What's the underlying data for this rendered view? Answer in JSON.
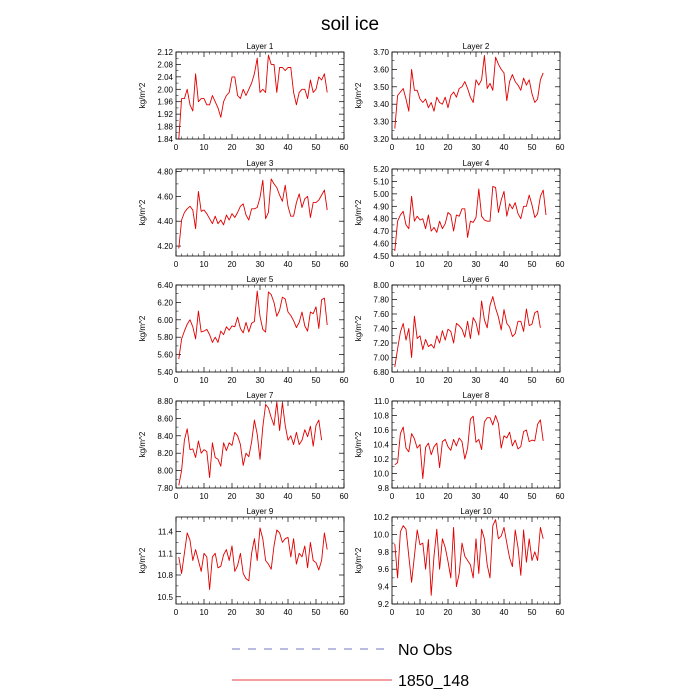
{
  "title": "soil ice",
  "legend": [
    {
      "label": "No Obs",
      "color": "#4b4bb0",
      "dash": "dashed"
    },
    {
      "label": "1850_148",
      "color": "#e00000",
      "dash": "solid"
    }
  ],
  "colors": {
    "series": "#e00000",
    "noobs": "#4b4bb0"
  },
  "chart_data": [
    {
      "type": "line",
      "title": "Layer 1",
      "ylabel": "kg/m^2",
      "xlim": [
        0,
        60
      ],
      "ylim": [
        1.84,
        2.12
      ],
      "xticks": [
        0,
        10,
        20,
        30,
        40,
        50,
        60
      ],
      "yticks": [
        1.84,
        1.88,
        1.92,
        1.96,
        2.0,
        2.04,
        2.08,
        2.12
      ],
      "ytick_labels": [
        "1.84",
        "1.88",
        "1.92",
        "1.96",
        "2.00",
        "2.04",
        "2.08",
        "2.12"
      ],
      "grid": false,
      "series": [
        {
          "name": "1850_148",
          "x_start": 1,
          "values": [
            1.84,
            1.97,
            1.97,
            2.0,
            1.95,
            1.93,
            2.05,
            1.96,
            1.97,
            1.97,
            1.95,
            1.95,
            1.98,
            1.96,
            1.94,
            1.91,
            1.96,
            1.98,
            1.99,
            2.04,
            2.04,
            1.98,
            1.97,
            2.0,
            1.98,
            2.0,
            2.02,
            2.05,
            2.1,
            1.99,
            2.0,
            1.99,
            2.11,
            2.08,
            2.08,
            1.99,
            2.07,
            2.07,
            2.06,
            2.07,
            2.07,
            1.99,
            1.95,
            1.99,
            2.0,
            2.0,
            1.97,
            2.03,
            1.99,
            2.0,
            2.04,
            2.03,
            2.05,
            1.99
          ]
        }
      ]
    },
    {
      "type": "line",
      "title": "Layer 2",
      "ylabel": "kg/m^2",
      "xlim": [
        0,
        60
      ],
      "ylim": [
        3.2,
        3.7
      ],
      "xticks": [
        0,
        10,
        20,
        30,
        40,
        50,
        60
      ],
      "yticks": [
        3.2,
        3.3,
        3.4,
        3.5,
        3.6,
        3.7
      ],
      "ytick_labels": [
        "3.20",
        "3.30",
        "3.40",
        "3.50",
        "3.60",
        "3.70"
      ],
      "grid": false,
      "series": [
        {
          "name": "1850_148",
          "x_start": 1,
          "values": [
            3.26,
            3.45,
            3.47,
            3.49,
            3.43,
            3.36,
            3.6,
            3.48,
            3.48,
            3.43,
            3.41,
            3.43,
            3.38,
            3.41,
            3.36,
            3.44,
            3.41,
            3.4,
            3.44,
            3.38,
            3.45,
            3.47,
            3.44,
            3.49,
            3.5,
            3.53,
            3.49,
            3.44,
            3.41,
            3.54,
            3.51,
            3.54,
            3.68,
            3.49,
            3.52,
            3.48,
            3.67,
            3.63,
            3.6,
            3.58,
            3.42,
            3.53,
            3.57,
            3.53,
            3.51,
            3.48,
            3.55,
            3.51,
            3.54,
            3.46,
            3.41,
            3.43,
            3.54,
            3.58
          ]
        }
      ]
    },
    {
      "type": "line",
      "title": "Layer 3",
      "ylabel": "kg/m^2",
      "xlim": [
        0,
        60
      ],
      "ylim": [
        4.12,
        4.82
      ],
      "xticks": [
        0,
        10,
        20,
        30,
        40,
        50,
        60
      ],
      "yticks": [
        4.2,
        4.4,
        4.6,
        4.8
      ],
      "ytick_labels": [
        "4.20",
        "4.40",
        "4.60",
        "4.80"
      ],
      "grid": false,
      "series": [
        {
          "name": "1850_148",
          "x_start": 1,
          "values": [
            4.18,
            4.41,
            4.47,
            4.5,
            4.52,
            4.49,
            4.34,
            4.64,
            4.48,
            4.49,
            4.46,
            4.42,
            4.38,
            4.44,
            4.38,
            4.41,
            4.37,
            4.45,
            4.41,
            4.46,
            4.43,
            4.47,
            4.52,
            4.54,
            4.45,
            4.41,
            4.5,
            4.5,
            4.51,
            4.59,
            4.73,
            4.42,
            4.47,
            4.74,
            4.7,
            4.67,
            4.61,
            4.56,
            4.69,
            4.52,
            4.44,
            4.44,
            4.55,
            4.62,
            4.51,
            4.58,
            4.6,
            4.43,
            4.55,
            4.55,
            4.57,
            4.61,
            4.65,
            4.49
          ]
        }
      ]
    },
    {
      "type": "line",
      "title": "Layer 4",
      "ylabel": "kg/m^2",
      "xlim": [
        0,
        60
      ],
      "ylim": [
        4.5,
        5.2
      ],
      "xticks": [
        0,
        10,
        20,
        30,
        40,
        50,
        60
      ],
      "yticks": [
        4.5,
        4.6,
        4.7,
        4.8,
        4.9,
        5.0,
        5.1,
        5.2
      ],
      "ytick_labels": [
        "4.50",
        "4.60",
        "4.70",
        "4.80",
        "4.90",
        "5.00",
        "5.10",
        "5.20"
      ],
      "grid": false,
      "series": [
        {
          "name": "1850_148",
          "x_start": 1,
          "values": [
            4.54,
            4.78,
            4.83,
            4.86,
            4.75,
            4.72,
            4.98,
            4.78,
            4.82,
            4.79,
            4.8,
            4.72,
            4.83,
            4.7,
            4.73,
            4.69,
            4.78,
            4.72,
            4.76,
            4.85,
            4.83,
            4.7,
            4.83,
            4.82,
            4.88,
            4.88,
            4.65,
            4.78,
            4.77,
            4.81,
            5.04,
            4.82,
            4.79,
            4.78,
            4.78,
            5.06,
            5.05,
            4.85,
            4.95,
            5.02,
            4.82,
            4.92,
            4.88,
            4.93,
            4.84,
            4.8,
            4.9,
            4.9,
            4.99,
            4.91,
            4.81,
            4.84,
            4.98,
            5.03,
            4.83
          ]
        }
      ]
    },
    {
      "type": "line",
      "title": "Layer 5",
      "ylabel": "kg/m^2",
      "xlim": [
        0,
        60
      ],
      "ylim": [
        5.4,
        6.4
      ],
      "xticks": [
        0,
        10,
        20,
        30,
        40,
        50,
        60
      ],
      "yticks": [
        5.4,
        5.6,
        5.8,
        6.0,
        6.2,
        6.4
      ],
      "ytick_labels": [
        "5.40",
        "5.60",
        "5.80",
        "6.00",
        "6.20",
        "6.40"
      ],
      "grid": false,
      "series": [
        {
          "name": "1850_148",
          "x_start": 1,
          "values": [
            5.55,
            5.78,
            5.87,
            5.95,
            6.0,
            5.92,
            5.78,
            6.1,
            5.86,
            5.87,
            5.89,
            5.83,
            5.74,
            5.8,
            5.74,
            5.87,
            5.83,
            5.92,
            5.88,
            5.93,
            5.92,
            6.03,
            5.9,
            5.85,
            5.97,
            5.86,
            5.96,
            5.98,
            6.33,
            6.04,
            5.89,
            5.86,
            6.32,
            6.29,
            6.2,
            6.04,
            6.11,
            6.26,
            6.24,
            6.09,
            6.05,
            5.99,
            5.91,
            5.97,
            6.09,
            5.93,
            5.87,
            6.09,
            6.07,
            6.15,
            5.9,
            6.23,
            6.25,
            5.94
          ]
        }
      ]
    },
    {
      "type": "line",
      "title": "Layer 6",
      "ylabel": "kg/m^2",
      "xlim": [
        0,
        60
      ],
      "ylim": [
        6.8,
        8.0
      ],
      "xticks": [
        0,
        10,
        20,
        30,
        40,
        50,
        60
      ],
      "yticks": [
        6.8,
        7.0,
        7.2,
        7.4,
        7.6,
        7.8,
        8.0
      ],
      "ytick_labels": [
        "6.80",
        "7.00",
        "7.20",
        "7.40",
        "7.60",
        "7.80",
        "8.00"
      ],
      "grid": false,
      "series": [
        {
          "name": "1850_148",
          "x_start": 1,
          "values": [
            6.87,
            7.12,
            7.35,
            7.47,
            7.24,
            7.4,
            7.0,
            7.57,
            7.26,
            7.3,
            7.11,
            7.25,
            7.15,
            7.18,
            7.13,
            7.3,
            7.2,
            7.37,
            7.24,
            7.39,
            7.36,
            7.2,
            7.47,
            7.44,
            7.39,
            7.28,
            7.5,
            7.26,
            7.55,
            7.48,
            7.31,
            7.78,
            7.52,
            7.41,
            7.72,
            7.84,
            7.68,
            7.56,
            7.38,
            7.66,
            7.47,
            7.42,
            7.29,
            7.33,
            7.5,
            7.5,
            7.36,
            7.67,
            7.44,
            7.46,
            7.62,
            7.64,
            7.41
          ]
        }
      ]
    },
    {
      "type": "line",
      "title": "Layer 7",
      "ylabel": "kg/m^2",
      "xlim": [
        0,
        60
      ],
      "ylim": [
        7.8,
        8.8
      ],
      "xticks": [
        0,
        10,
        20,
        30,
        40,
        50,
        60
      ],
      "yticks": [
        7.8,
        8.0,
        8.2,
        8.4,
        8.6,
        8.8
      ],
      "ytick_labels": [
        "7.80",
        "8.00",
        "8.20",
        "8.40",
        "8.60",
        "8.80"
      ],
      "grid": false,
      "series": [
        {
          "name": "1850_148",
          "x_start": 1,
          "values": [
            7.83,
            8.0,
            8.35,
            8.48,
            8.24,
            8.25,
            8.15,
            8.34,
            8.2,
            8.24,
            8.22,
            7.92,
            8.32,
            8.15,
            8.13,
            8.05,
            8.32,
            8.23,
            8.32,
            8.29,
            8.44,
            8.4,
            8.3,
            8.06,
            8.2,
            8.16,
            8.33,
            8.58,
            8.42,
            8.13,
            8.5,
            8.76,
            8.72,
            8.61,
            8.52,
            8.79,
            8.46,
            8.78,
            8.52,
            8.35,
            8.4,
            8.3,
            8.44,
            8.3,
            8.35,
            8.47,
            8.39,
            8.51,
            8.28,
            8.52,
            8.58,
            8.35
          ]
        }
      ]
    },
    {
      "type": "line",
      "title": "Layer 8",
      "ylabel": "kg/m^2",
      "xlim": [
        0,
        60
      ],
      "ylim": [
        9.8,
        11.0
      ],
      "xticks": [
        0,
        10,
        20,
        30,
        40,
        50,
        60
      ],
      "yticks": [
        9.8,
        10.0,
        10.2,
        10.4,
        10.6,
        10.8,
        11.0
      ],
      "ytick_labels": [
        "9.8",
        "10.0",
        "10.2",
        "10.4",
        "10.6",
        "10.8",
        "11.0"
      ],
      "grid": false,
      "series": [
        {
          "name": "1850_148",
          "x_start": 1,
          "values": [
            10.12,
            10.15,
            10.55,
            10.64,
            10.35,
            10.3,
            10.55,
            10.48,
            10.35,
            10.4,
            9.93,
            10.36,
            10.42,
            10.26,
            10.37,
            10.42,
            10.08,
            10.44,
            10.47,
            10.37,
            10.32,
            10.47,
            10.38,
            10.49,
            10.44,
            10.2,
            10.35,
            10.75,
            10.79,
            10.43,
            10.47,
            10.33,
            10.71,
            10.77,
            10.77,
            10.67,
            10.8,
            10.69,
            10.35,
            10.52,
            10.49,
            10.57,
            10.38,
            10.46,
            10.34,
            10.37,
            10.58,
            10.6,
            10.44,
            10.46,
            10.45,
            10.68,
            10.74,
            10.45
          ]
        }
      ]
    },
    {
      "type": "line",
      "title": "Layer 9",
      "ylabel": "kg/m^2",
      "xlim": [
        0,
        60
      ],
      "ylim": [
        10.4,
        11.6
      ],
      "xticks": [
        0,
        10,
        20,
        30,
        40,
        50,
        60
      ],
      "yticks": [
        10.5,
        10.8,
        11.1,
        11.4
      ],
      "ytick_labels": [
        "10.5",
        "10.8",
        "11.1",
        "11.4"
      ],
      "grid": false,
      "series": [
        {
          "name": "1850_148",
          "x_start": 1,
          "values": [
            11.05,
            10.82,
            11.1,
            11.38,
            11.28,
            11.0,
            11.15,
            11.0,
            10.85,
            11.1,
            11.05,
            10.6,
            11.05,
            11.1,
            10.9,
            10.92,
            11.08,
            11.15,
            11.0,
            11.2,
            10.85,
            10.93,
            11.1,
            10.82,
            10.75,
            10.72,
            11.1,
            11.3,
            11.0,
            11.45,
            11.3,
            11.0,
            10.95,
            10.88,
            11.2,
            11.42,
            11.38,
            11.25,
            11.3,
            11.32,
            11.05,
            11.3,
            10.95,
            11.1,
            11.05,
            11.2,
            10.9,
            11.25,
            11.0,
            10.97,
            10.87,
            11.0,
            11.38,
            11.15
          ]
        }
      ]
    },
    {
      "type": "line",
      "title": "Layer 10",
      "ylabel": "kg/m^2",
      "xlim": [
        0,
        60
      ],
      "ylim": [
        9.2,
        10.2
      ],
      "xticks": [
        0,
        10,
        20,
        30,
        40,
        50,
        60
      ],
      "yticks": [
        9.2,
        9.4,
        9.6,
        9.8,
        10.0,
        10.2
      ],
      "ytick_labels": [
        "9.2",
        "9.4",
        "9.6",
        "9.8",
        "10.0",
        "10.2"
      ],
      "grid": false,
      "series": [
        {
          "name": "1850_148",
          "x_start": 1,
          "values": [
            9.89,
            9.5,
            10.03,
            10.1,
            10.06,
            9.75,
            9.45,
            9.75,
            10.05,
            9.88,
            9.9,
            9.6,
            9.94,
            9.3,
            9.75,
            10.06,
            9.6,
            9.95,
            9.85,
            9.69,
            9.5,
            10.08,
            9.4,
            9.55,
            9.9,
            9.75,
            9.7,
            9.65,
            9.5,
            9.95,
            9.55,
            10.06,
            9.95,
            9.65,
            9.5,
            10.1,
            10.17,
            9.95,
            9.98,
            10.08,
            9.9,
            9.73,
            9.63,
            10.05,
            9.85,
            9.53,
            10.05,
            9.68,
            9.95,
            9.7,
            9.8,
            9.7,
            10.08,
            9.95
          ]
        }
      ]
    }
  ]
}
